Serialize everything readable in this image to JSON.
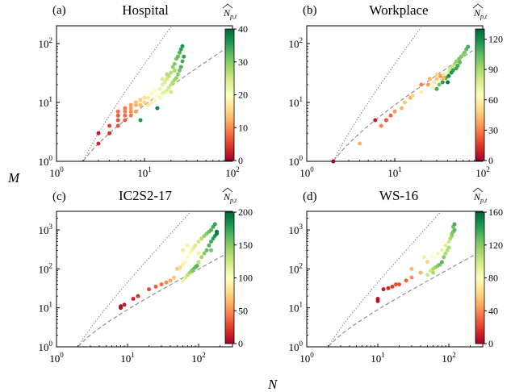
{
  "figure": {
    "xlabel": "N",
    "ylabel": "M",
    "cbar_label_hat": "N",
    "cbar_label_sub": "p,t"
  },
  "chart_data": [
    {
      "type": "scatter",
      "panel_label": "(a)",
      "title": "Hospital",
      "xscale": "log",
      "yscale": "log",
      "xlim": [
        1,
        100
      ],
      "ylim": [
        1,
        200
      ],
      "xticks": [
        "10^0",
        "10^1",
        "10^2"
      ],
      "yticks": [
        "10^0",
        "10^1",
        "10^2"
      ],
      "colorbar": {
        "min": 0,
        "max": 40,
        "ticks": [
          "0",
          "10",
          "20",
          "30",
          "40"
        ]
      },
      "points": [
        {
          "n": 3,
          "m": 2,
          "c": 3
        },
        {
          "n": 3,
          "m": 3,
          "c": 2
        },
        {
          "n": 4,
          "m": 3,
          "c": 4
        },
        {
          "n": 4,
          "m": 4,
          "c": 5
        },
        {
          "n": 5,
          "m": 4,
          "c": 6
        },
        {
          "n": 5,
          "m": 5,
          "c": 6
        },
        {
          "n": 5,
          "m": 6,
          "c": 7
        },
        {
          "n": 5,
          "m": 7,
          "c": 8
        },
        {
          "n": 6,
          "m": 5,
          "c": 7
        },
        {
          "n": 6,
          "m": 6,
          "c": 8
        },
        {
          "n": 6,
          "m": 7,
          "c": 9
        },
        {
          "n": 6,
          "m": 8,
          "c": 9
        },
        {
          "n": 7,
          "m": 6,
          "c": 9
        },
        {
          "n": 7,
          "m": 7,
          "c": 10
        },
        {
          "n": 7,
          "m": 8,
          "c": 11
        },
        {
          "n": 7,
          "m": 9,
          "c": 11
        },
        {
          "n": 8,
          "m": 7,
          "c": 11
        },
        {
          "n": 8,
          "m": 9,
          "c": 12
        },
        {
          "n": 8,
          "m": 10,
          "c": 13
        },
        {
          "n": 9,
          "m": 5,
          "c": 36
        },
        {
          "n": 9,
          "m": 9,
          "c": 13
        },
        {
          "n": 9,
          "m": 11,
          "c": 14
        },
        {
          "n": 10,
          "m": 10,
          "c": 15
        },
        {
          "n": 10,
          "m": 12,
          "c": 16
        },
        {
          "n": 11,
          "m": 9,
          "c": 17
        },
        {
          "n": 11,
          "m": 12,
          "c": 17
        },
        {
          "n": 12,
          "m": 10,
          "c": 18
        },
        {
          "n": 12,
          "m": 14,
          "c": 19
        },
        {
          "n": 13,
          "m": 11,
          "c": 19
        },
        {
          "n": 13,
          "m": 16,
          "c": 20
        },
        {
          "n": 14,
          "m": 8,
          "c": 38
        },
        {
          "n": 14,
          "m": 13,
          "c": 20
        },
        {
          "n": 15,
          "m": 12,
          "c": 21
        },
        {
          "n": 15,
          "m": 17,
          "c": 22
        },
        {
          "n": 16,
          "m": 14,
          "c": 22
        },
        {
          "n": 16,
          "m": 20,
          "c": 23
        },
        {
          "n": 17,
          "m": 15,
          "c": 23
        },
        {
          "n": 17,
          "m": 22,
          "c": 24
        },
        {
          "n": 18,
          "m": 16,
          "c": 24
        },
        {
          "n": 18,
          "m": 25,
          "c": 25
        },
        {
          "n": 19,
          "m": 18,
          "c": 25
        },
        {
          "n": 19,
          "m": 28,
          "c": 26
        },
        {
          "n": 20,
          "m": 20,
          "c": 26
        },
        {
          "n": 20,
          "m": 32,
          "c": 27
        },
        {
          "n": 21,
          "m": 22,
          "c": 27
        },
        {
          "n": 21,
          "m": 40,
          "c": 29
        },
        {
          "n": 22,
          "m": 24,
          "c": 28
        },
        {
          "n": 22,
          "m": 45,
          "c": 30
        },
        {
          "n": 23,
          "m": 26,
          "c": 29
        },
        {
          "n": 23,
          "m": 55,
          "c": 31
        },
        {
          "n": 24,
          "m": 30,
          "c": 30
        },
        {
          "n": 24,
          "m": 60,
          "c": 32
        },
        {
          "n": 25,
          "m": 35,
          "c": 31
        },
        {
          "n": 25,
          "m": 70,
          "c": 33
        },
        {
          "n": 26,
          "m": 40,
          "c": 33
        },
        {
          "n": 26,
          "m": 80,
          "c": 35
        },
        {
          "n": 27,
          "m": 50,
          "c": 34
        },
        {
          "n": 27,
          "m": 90,
          "c": 36
        },
        {
          "n": 28,
          "m": 60,
          "c": 35
        },
        {
          "n": 20,
          "m": 15,
          "c": 25
        },
        {
          "n": 18,
          "m": 30,
          "c": 27
        },
        {
          "n": 22,
          "m": 35,
          "c": 28
        },
        {
          "n": 16,
          "m": 25,
          "c": 24
        }
      ]
    },
    {
      "type": "scatter",
      "panel_label": "(b)",
      "title": "Workplace",
      "xscale": "log",
      "yscale": "log",
      "xlim": [
        1,
        100
      ],
      "ylim": [
        1,
        200
      ],
      "xticks": [
        "10^0",
        "10^1",
        "10^2"
      ],
      "yticks": [
        "10^0",
        "10^1",
        "10^2"
      ],
      "colorbar": {
        "min": 0,
        "max": 130,
        "ticks": [
          "0",
          "30",
          "60",
          "90",
          "120"
        ]
      },
      "points": [
        {
          "n": 2,
          "m": 1,
          "c": 2
        },
        {
          "n": 4,
          "m": 2,
          "c": 40
        },
        {
          "n": 6,
          "m": 5,
          "c": 8
        },
        {
          "n": 7,
          "m": 4,
          "c": 30
        },
        {
          "n": 8,
          "m": 5,
          "c": 20
        },
        {
          "n": 9,
          "m": 6,
          "c": 25
        },
        {
          "n": 10,
          "m": 7,
          "c": 35
        },
        {
          "n": 12,
          "m": 8,
          "c": 40
        },
        {
          "n": 13,
          "m": 10,
          "c": 45
        },
        {
          "n": 15,
          "m": 12,
          "c": 40
        },
        {
          "n": 16,
          "m": 13,
          "c": 50
        },
        {
          "n": 20,
          "m": 15,
          "c": 60
        },
        {
          "n": 24,
          "m": 20,
          "c": 35
        },
        {
          "n": 25,
          "m": 25,
          "c": 40
        },
        {
          "n": 27,
          "m": 18,
          "c": 70
        },
        {
          "n": 28,
          "m": 22,
          "c": 55
        },
        {
          "n": 30,
          "m": 17,
          "c": 110
        },
        {
          "n": 30,
          "m": 25,
          "c": 45
        },
        {
          "n": 32,
          "m": 20,
          "c": 100
        },
        {
          "n": 33,
          "m": 28,
          "c": 35
        },
        {
          "n": 34,
          "m": 24,
          "c": 60
        },
        {
          "n": 35,
          "m": 22,
          "c": 115
        },
        {
          "n": 36,
          "m": 30,
          "c": 55
        },
        {
          "n": 38,
          "m": 26,
          "c": 110
        },
        {
          "n": 40,
          "m": 32,
          "c": 70
        },
        {
          "n": 41,
          "m": 28,
          "c": 120
        },
        {
          "n": 42,
          "m": 36,
          "c": 80
        },
        {
          "n": 44,
          "m": 32,
          "c": 118
        },
        {
          "n": 45,
          "m": 40,
          "c": 85
        },
        {
          "n": 46,
          "m": 35,
          "c": 115
        },
        {
          "n": 48,
          "m": 45,
          "c": 90
        },
        {
          "n": 50,
          "m": 38,
          "c": 112
        },
        {
          "n": 50,
          "m": 50,
          "c": 95
        },
        {
          "n": 52,
          "m": 42,
          "c": 110
        },
        {
          "n": 54,
          "m": 55,
          "c": 100
        },
        {
          "n": 55,
          "m": 48,
          "c": 105
        },
        {
          "n": 57,
          "m": 60,
          "c": 100
        },
        {
          "n": 60,
          "m": 65,
          "c": 95
        },
        {
          "n": 62,
          "m": 70,
          "c": 100
        },
        {
          "n": 65,
          "m": 80,
          "c": 105
        },
        {
          "n": 68,
          "m": 88,
          "c": 110
        },
        {
          "n": 40,
          "m": 22,
          "c": 125
        },
        {
          "n": 36,
          "m": 26,
          "c": 40
        },
        {
          "n": 30,
          "m": 30,
          "c": 50
        },
        {
          "n": 20,
          "m": 20,
          "c": 30
        }
      ]
    },
    {
      "type": "scatter",
      "panel_label": "(c)",
      "title": "IC2S2-17",
      "xscale": "log",
      "yscale": "log",
      "xlim": [
        1,
        300
      ],
      "ylim": [
        1,
        3000
      ],
      "xticks": [
        "10^0",
        "10^1",
        "10^2"
      ],
      "yticks": [
        "10^0",
        "10^1",
        "10^2",
        "10^3"
      ],
      "colorbar": {
        "min": 0,
        "max": 200,
        "ticks": [
          "0",
          "50",
          "100",
          "150",
          "200"
        ]
      },
      "points": [
        {
          "n": 8,
          "m": 10,
          "c": 5
        },
        {
          "n": 8,
          "m": 11,
          "c": 8
        },
        {
          "n": 9,
          "m": 12,
          "c": 10
        },
        {
          "n": 12,
          "m": 17,
          "c": 15
        },
        {
          "n": 14,
          "m": 20,
          "c": 20
        },
        {
          "n": 20,
          "m": 30,
          "c": 30
        },
        {
          "n": 25,
          "m": 35,
          "c": 35
        },
        {
          "n": 30,
          "m": 40,
          "c": 40
        },
        {
          "n": 35,
          "m": 45,
          "c": 50
        },
        {
          "n": 40,
          "m": 50,
          "c": 60
        },
        {
          "n": 45,
          "m": 60,
          "c": 70
        },
        {
          "n": 50,
          "m": 100,
          "c": 70
        },
        {
          "n": 55,
          "m": 110,
          "c": 80
        },
        {
          "n": 60,
          "m": 50,
          "c": 110
        },
        {
          "n": 60,
          "m": 130,
          "c": 90
        },
        {
          "n": 65,
          "m": 60,
          "c": 120
        },
        {
          "n": 65,
          "m": 150,
          "c": 95
        },
        {
          "n": 70,
          "m": 70,
          "c": 130
        },
        {
          "n": 70,
          "m": 200,
          "c": 100
        },
        {
          "n": 75,
          "m": 80,
          "c": 140
        },
        {
          "n": 75,
          "m": 250,
          "c": 105
        },
        {
          "n": 80,
          "m": 90,
          "c": 150
        },
        {
          "n": 80,
          "m": 300,
          "c": 110
        },
        {
          "n": 85,
          "m": 100,
          "c": 155
        },
        {
          "n": 85,
          "m": 350,
          "c": 115
        },
        {
          "n": 90,
          "m": 110,
          "c": 160
        },
        {
          "n": 90,
          "m": 400,
          "c": 120
        },
        {
          "n": 95,
          "m": 120,
          "c": 165
        },
        {
          "n": 100,
          "m": 150,
          "c": 130
        },
        {
          "n": 100,
          "m": 500,
          "c": 125
        },
        {
          "n": 110,
          "m": 200,
          "c": 140
        },
        {
          "n": 110,
          "m": 600,
          "c": 135
        },
        {
          "n": 120,
          "m": 250,
          "c": 150
        },
        {
          "n": 120,
          "m": 700,
          "c": 145
        },
        {
          "n": 130,
          "m": 300,
          "c": 160
        },
        {
          "n": 130,
          "m": 800,
          "c": 150
        },
        {
          "n": 140,
          "m": 400,
          "c": 165
        },
        {
          "n": 140,
          "m": 900,
          "c": 160
        },
        {
          "n": 150,
          "m": 500,
          "c": 170
        },
        {
          "n": 150,
          "m": 1000,
          "c": 165
        },
        {
          "n": 160,
          "m": 600,
          "c": 175
        },
        {
          "n": 160,
          "m": 1200,
          "c": 170
        },
        {
          "n": 170,
          "m": 700,
          "c": 180
        },
        {
          "n": 170,
          "m": 1400,
          "c": 175
        },
        {
          "n": 180,
          "m": 800,
          "c": 190
        },
        {
          "n": 180,
          "m": 900,
          "c": 195
        },
        {
          "n": 150,
          "m": 300,
          "c": 155
        },
        {
          "n": 100,
          "m": 250,
          "c": 110
        },
        {
          "n": 60,
          "m": 300,
          "c": 85
        },
        {
          "n": 70,
          "m": 400,
          "c": 90
        }
      ]
    },
    {
      "type": "scatter",
      "panel_label": "(d)",
      "title": "WS-16",
      "xscale": "log",
      "yscale": "log",
      "xlim": [
        1,
        300
      ],
      "ylim": [
        1,
        3000
      ],
      "xticks": [
        "10^0",
        "10^1",
        "10^2"
      ],
      "yticks": [
        "10^0",
        "10^1",
        "10^2",
        "10^3"
      ],
      "colorbar": {
        "min": 0,
        "max": 160,
        "ticks": [
          "0",
          "40",
          "80",
          "120",
          "160"
        ]
      },
      "points": [
        {
          "n": 10,
          "m": 15,
          "c": 5
        },
        {
          "n": 10,
          "m": 17,
          "c": 8
        },
        {
          "n": 12,
          "m": 30,
          "c": 10
        },
        {
          "n": 14,
          "m": 32,
          "c": 15
        },
        {
          "n": 16,
          "m": 35,
          "c": 20
        },
        {
          "n": 18,
          "m": 40,
          "c": 25
        },
        {
          "n": 25,
          "m": 50,
          "c": 30
        },
        {
          "n": 30,
          "m": 60,
          "c": 40
        },
        {
          "n": 40,
          "m": 80,
          "c": 50
        },
        {
          "n": 45,
          "m": 200,
          "c": 70
        },
        {
          "n": 50,
          "m": 150,
          "c": 60
        },
        {
          "n": 55,
          "m": 90,
          "c": 100
        },
        {
          "n": 60,
          "m": 100,
          "c": 110
        },
        {
          "n": 60,
          "m": 200,
          "c": 80
        },
        {
          "n": 65,
          "m": 110,
          "c": 115
        },
        {
          "n": 70,
          "m": 120,
          "c": 120
        },
        {
          "n": 70,
          "m": 250,
          "c": 85
        },
        {
          "n": 75,
          "m": 130,
          "c": 125
        },
        {
          "n": 80,
          "m": 150,
          "c": 130
        },
        {
          "n": 80,
          "m": 300,
          "c": 90
        },
        {
          "n": 85,
          "m": 200,
          "c": 120
        },
        {
          "n": 90,
          "m": 250,
          "c": 110
        },
        {
          "n": 90,
          "m": 400,
          "c": 95
        },
        {
          "n": 95,
          "m": 300,
          "c": 105
        },
        {
          "n": 100,
          "m": 500,
          "c": 100
        },
        {
          "n": 100,
          "m": 350,
          "c": 110
        },
        {
          "n": 105,
          "m": 600,
          "c": 110
        },
        {
          "n": 110,
          "m": 700,
          "c": 115
        },
        {
          "n": 110,
          "m": 800,
          "c": 120
        },
        {
          "n": 115,
          "m": 900,
          "c": 125
        },
        {
          "n": 120,
          "m": 1000,
          "c": 130
        },
        {
          "n": 115,
          "m": 1200,
          "c": 125
        },
        {
          "n": 120,
          "m": 1400,
          "c": 135
        },
        {
          "n": 50,
          "m": 70,
          "c": 100
        },
        {
          "n": 60,
          "m": 80,
          "c": 110
        },
        {
          "n": 30,
          "m": 100,
          "c": 50
        },
        {
          "n": 20,
          "m": 40,
          "c": 25
        }
      ]
    }
  ]
}
